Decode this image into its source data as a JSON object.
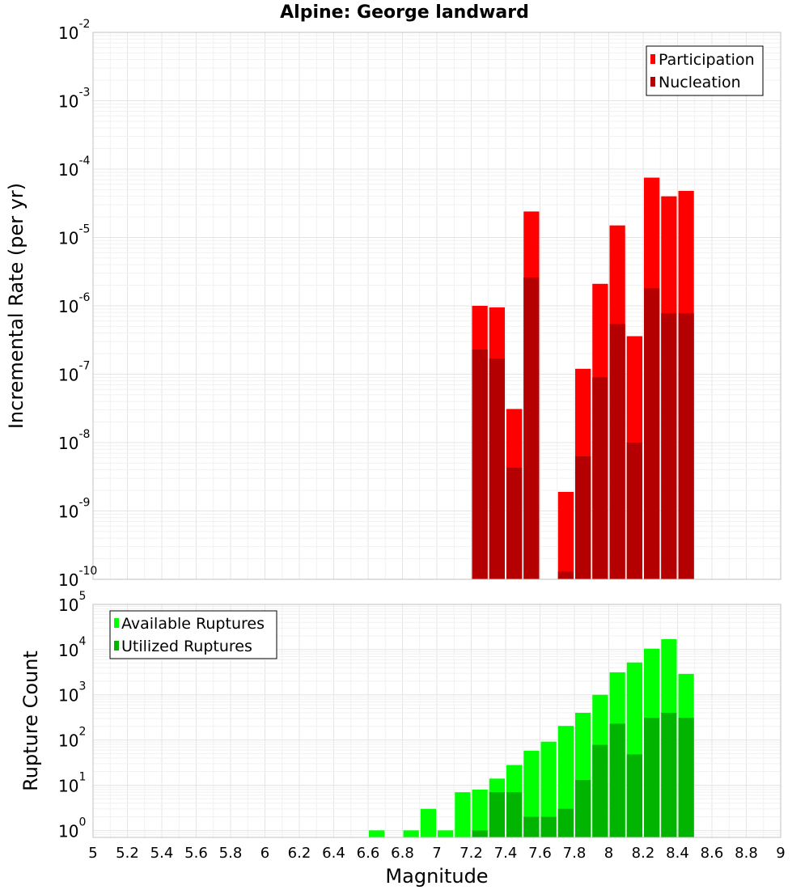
{
  "chart_data": [
    {
      "type": "bar",
      "title": "Alpine: George landward",
      "ylabel": "Incremental Rate (per yr)",
      "xlabel": "",
      "yscale": "log",
      "ylim": [
        1e-10,
        0.01
      ],
      "xlim": [
        5,
        9
      ],
      "bin_width": 0.1,
      "grid": true,
      "legend_position": "top-right",
      "y_ticks": [
        {
          "base": "10",
          "exp": "-10"
        },
        {
          "base": "10",
          "exp": "-9"
        },
        {
          "base": "10",
          "exp": "-8"
        },
        {
          "base": "10",
          "exp": "-7"
        },
        {
          "base": "10",
          "exp": "-6"
        },
        {
          "base": "10",
          "exp": "-5"
        },
        {
          "base": "10",
          "exp": "-4"
        },
        {
          "base": "10",
          "exp": "-3"
        },
        {
          "base": "10",
          "exp": "-2"
        }
      ],
      "series": [
        {
          "name": "Participation",
          "color": "#ff0000",
          "x": [
            7.25,
            7.35,
            7.45,
            7.55,
            7.75,
            7.85,
            7.95,
            8.05,
            8.15,
            8.25,
            8.35,
            8.45
          ],
          "values": [
            1e-06,
            9.5e-07,
            3.1e-08,
            2.4e-05,
            1.9e-09,
            1.2e-07,
            2.1e-06,
            1.5e-05,
            3.6e-07,
            7.5e-05,
            4e-05,
            4.8e-05
          ]
        },
        {
          "name": "Nucleation",
          "color": "#b40000",
          "x": [
            7.25,
            7.35,
            7.45,
            7.55,
            7.75,
            7.85,
            7.95,
            8.05,
            8.15,
            8.25,
            8.35,
            8.45
          ],
          "values": [
            2.3e-07,
            1.7e-07,
            4.3e-09,
            2.6e-06,
            1.3e-10,
            6.3e-09,
            9e-08,
            5.4e-07,
            1e-08,
            1.8e-06,
            7.8e-07,
            7.8e-07
          ]
        }
      ]
    },
    {
      "type": "bar",
      "title": "",
      "ylabel": "Rupture Count",
      "xlabel": "Magnitude",
      "yscale": "log",
      "ylim": [
        0.7,
        100000
      ],
      "xlim": [
        5,
        9
      ],
      "bin_width": 0.1,
      "grid": true,
      "legend_position": "top-left",
      "y_ticks": [
        {
          "base": "10",
          "exp": "0",
          "value": 1
        },
        {
          "base": "10",
          "exp": "1",
          "value": 10
        },
        {
          "base": "10",
          "exp": "2",
          "value": 100
        },
        {
          "base": "10",
          "exp": "3",
          "value": 1000
        },
        {
          "base": "10",
          "exp": "4",
          "value": 10000
        },
        {
          "base": "10",
          "exp": "5",
          "value": 100000
        }
      ],
      "x_ticks": [
        "5",
        "5.2",
        "5.4",
        "5.6",
        "5.8",
        "6",
        "6.2",
        "6.4",
        "6.6",
        "6.8",
        "7",
        "7.2",
        "7.4",
        "7.6",
        "7.8",
        "8",
        "8.2",
        "8.4",
        "8.6",
        "8.8",
        "9"
      ],
      "series": [
        {
          "name": "Available Ruptures",
          "color": "#00ff00",
          "x": [
            6.65,
            6.85,
            6.95,
            7.05,
            7.15,
            7.25,
            7.35,
            7.45,
            7.55,
            7.65,
            7.75,
            7.85,
            7.95,
            8.05,
            8.15,
            8.25,
            8.35,
            8.45
          ],
          "values": [
            1,
            1,
            3,
            1,
            7,
            8,
            14,
            28,
            58,
            92,
            205,
            400,
            1000,
            3150,
            5200,
            10500,
            17000,
            2900
          ]
        },
        {
          "name": "Utilized Ruptures",
          "color": "#00b400",
          "x": [
            7.25,
            7.35,
            7.45,
            7.55,
            7.65,
            7.75,
            7.85,
            7.95,
            8.05,
            8.15,
            8.25,
            8.35,
            8.45
          ],
          "values": [
            1,
            7,
            7,
            2,
            2,
            3,
            13,
            78,
            230,
            48,
            310,
            400,
            310
          ]
        }
      ]
    }
  ]
}
